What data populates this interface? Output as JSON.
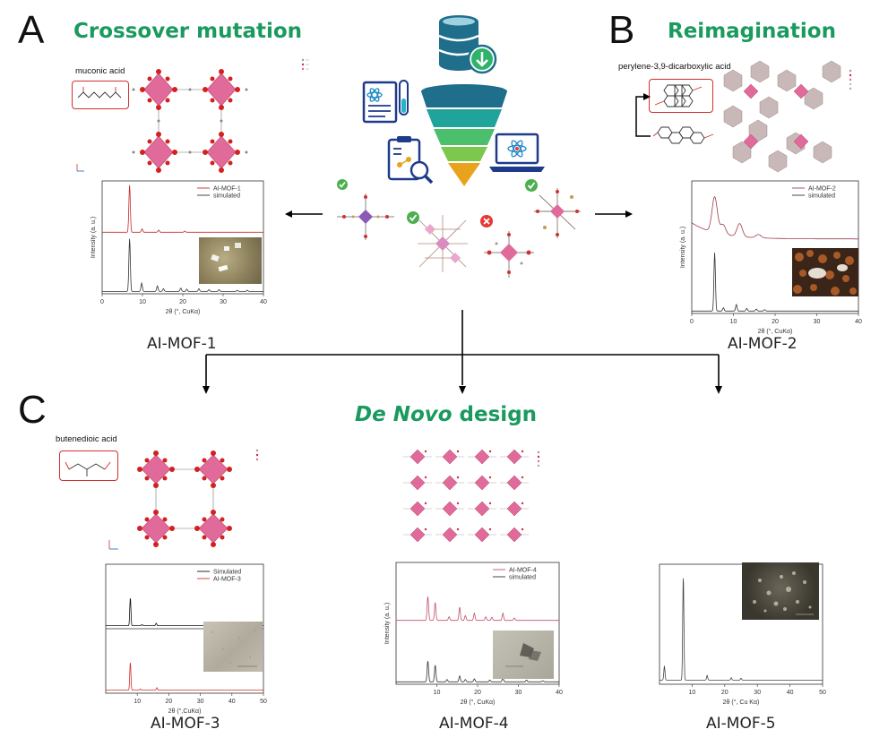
{
  "panels": {
    "A": {
      "letter": "A",
      "title": "Crossover mutation",
      "acid": "muconic acid"
    },
    "B": {
      "letter": "B",
      "title": "Reimagination",
      "acid": "perylene-3,9-dicarboxylic acid"
    },
    "C": {
      "letter": "C",
      "title_italic": "De Novo",
      "title_rest": " design",
      "acid": "butenedioic acid"
    }
  },
  "captions": {
    "mof1": "AI-MOF-1",
    "mof2": "AI-MOF-2",
    "mof3": "AI-MOF-3",
    "mof4": "AI-MOF-4",
    "mof5": "AI-MOF-5"
  },
  "workflow": {
    "icons": [
      "database-download-icon",
      "research-document-icon",
      "funnel-icon",
      "clipboard-analysis-icon",
      "laptop-atom-icon"
    ],
    "candidate_status": [
      "accepted",
      "accepted",
      "rejected",
      "accepted"
    ],
    "funnel_colors": [
      "#1f6e8c",
      "#1fa39a",
      "#4bbf6b",
      "#7cc84f",
      "#e8a21b"
    ]
  },
  "colors": {
    "title_green": "#1a9a5f",
    "red_pattern": "#c62828",
    "sim_pattern": "#222222",
    "check_green": "#4caf50",
    "cross_red": "#e53935",
    "pink_node": "#e06a9a"
  },
  "chart_data": [
    {
      "id": "mof1",
      "type": "line",
      "xlabel": "2θ (°, CuKα)",
      "ylabel": "Intensity (a. u.)",
      "xlim": [
        0,
        40
      ],
      "xticks": [
        0,
        10,
        20,
        30,
        40
      ],
      "series": [
        {
          "name": "AI-MOF-1",
          "color": "#c62828",
          "offset": 0.5,
          "baseline": 0.08,
          "peaks": [
            [
              6.8,
              0.85
            ],
            [
              9.9,
              0.06
            ],
            [
              14.0,
              0.04
            ],
            [
              20.5,
              0.02
            ]
          ]
        },
        {
          "name": "simulated",
          "color": "#333333",
          "offset": 0.0,
          "baseline": 0.01,
          "peaks": [
            [
              6.8,
              0.95
            ],
            [
              9.8,
              0.15
            ],
            [
              13.7,
              0.1
            ],
            [
              15.2,
              0.05
            ],
            [
              19.5,
              0.06
            ],
            [
              21.0,
              0.04
            ],
            [
              24.0,
              0.05
            ],
            [
              26.5,
              0.03
            ],
            [
              29.0,
              0.03
            ],
            [
              33.5,
              0.02
            ],
            [
              36.0,
              0.02
            ]
          ]
        }
      ]
    },
    {
      "id": "mof2",
      "type": "line",
      "xlabel": "2θ (°, CuKα)",
      "ylabel": "Intensity (a. u.)",
      "xlim": [
        0,
        40
      ],
      "xticks": [
        0,
        10,
        20,
        30,
        40
      ],
      "series": [
        {
          "name": "AI-MOF-2",
          "color": "#a33b4a",
          "offset": 0.5,
          "baseline": 0.12,
          "peaks": [
            [
              5.5,
              0.55
            ],
            [
              7.5,
              0.15
            ],
            [
              11.5,
              0.2
            ],
            [
              16.0,
              0.05
            ]
          ],
          "width": 0.9
        },
        {
          "name": "simulated",
          "color": "#333333",
          "offset": 0.0,
          "baseline": 0.01,
          "peaks": [
            [
              5.5,
              0.9
            ],
            [
              7.6,
              0.05
            ],
            [
              10.7,
              0.1
            ],
            [
              13.2,
              0.04
            ],
            [
              15.5,
              0.03
            ],
            [
              17.5,
              0.02
            ]
          ]
        }
      ]
    },
    {
      "id": "mof3",
      "type": "line",
      "xlabel": "2θ (°,CuKα)",
      "ylabel": "",
      "xlim": [
        0,
        50
      ],
      "xticks": [
        10,
        20,
        30,
        40,
        50
      ],
      "series": [
        {
          "name": "Simulated",
          "color": "#111111",
          "offset": 0.52,
          "baseline": 0.0,
          "peaks": [
            [
              7.8,
              0.45
            ],
            [
              11.5,
              0.02
            ],
            [
              16.0,
              0.04
            ]
          ]
        },
        {
          "name": "AI-MOF-3",
          "color": "#d32f2f",
          "offset": 0.0,
          "baseline": 0.02,
          "peaks": [
            [
              7.8,
              0.45
            ],
            [
              11.0,
              0.02
            ],
            [
              16.2,
              0.04
            ]
          ]
        }
      ]
    },
    {
      "id": "mof4",
      "type": "line",
      "xlabel": "2θ (°, CuKα)",
      "ylabel": "Intensity (a. u.)",
      "xlim": [
        0,
        40
      ],
      "xticks": [
        10,
        20,
        30,
        40
      ],
      "series": [
        {
          "name": "AI-MOF-4",
          "color": "#c0506a",
          "offset": 0.5,
          "baseline": 0.04,
          "peaks": [
            [
              7.8,
              0.4
            ],
            [
              9.6,
              0.3
            ],
            [
              13.0,
              0.06
            ],
            [
              15.6,
              0.22
            ],
            [
              17.0,
              0.08
            ],
            [
              19.2,
              0.12
            ],
            [
              22.0,
              0.06
            ],
            [
              23.5,
              0.05
            ],
            [
              26.2,
              0.12
            ],
            [
              29.0,
              0.04
            ]
          ]
        },
        {
          "name": "simulated",
          "color": "#333333",
          "offset": 0.0,
          "baseline": 0.01,
          "peaks": [
            [
              7.8,
              0.35
            ],
            [
              9.6,
              0.28
            ],
            [
              12.5,
              0.04
            ],
            [
              15.6,
              0.1
            ],
            [
              17.0,
              0.04
            ],
            [
              19.2,
              0.05
            ],
            [
              23.0,
              0.03
            ],
            [
              26.2,
              0.06
            ],
            [
              32.0,
              0.03
            ],
            [
              36.0,
              0.02
            ]
          ]
        }
      ]
    },
    {
      "id": "mof5",
      "type": "line",
      "xlabel": "2θ (°, Cu Kα)",
      "ylabel": "",
      "xlim": [
        0,
        50
      ],
      "xticks": [
        10,
        20,
        30,
        40,
        50
      ],
      "series": [
        {
          "name": "",
          "color": "#444444",
          "offset": 0.0,
          "baseline": 0.02,
          "peaks": [
            [
              1.5,
              0.12
            ],
            [
              7.3,
              0.9
            ],
            [
              14.6,
              0.04
            ],
            [
              22.0,
              0.02
            ],
            [
              25.0,
              0.015
            ]
          ]
        }
      ]
    }
  ]
}
